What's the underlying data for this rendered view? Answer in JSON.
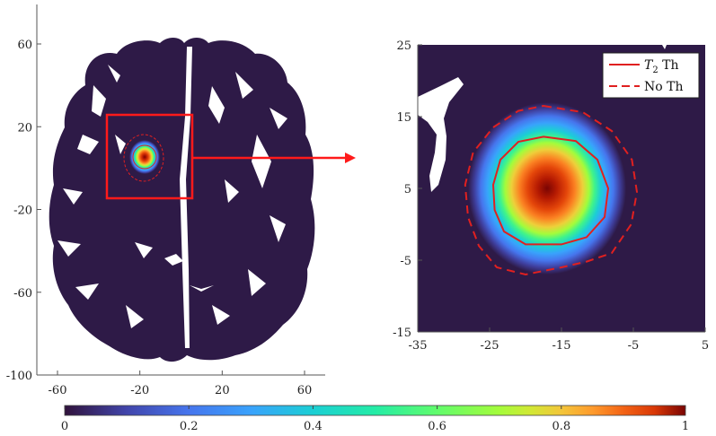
{
  "chart_data": [
    {
      "type": "heatmap",
      "panel": "full brain slice",
      "xlim": [
        -70,
        70
      ],
      "ylim": [
        -100,
        80
      ],
      "xticks": [
        -60,
        -20,
        20,
        60
      ],
      "yticks": [
        60,
        20,
        -20,
        -60,
        -100
      ],
      "tumor_center": [
        -17,
        5
      ],
      "tumor_peak_value": 1,
      "zoom_box": {
        "x_range": [
          -35,
          5
        ],
        "y_range": [
          -15,
          25
        ]
      }
    },
    {
      "type": "heatmap",
      "panel": "zoomed region",
      "xlim": [
        -35,
        5
      ],
      "ylim": [
        -15,
        25
      ],
      "xticks": [
        -35,
        -25,
        -15,
        -5,
        5
      ],
      "yticks": [
        25,
        15,
        5,
        -5,
        -15
      ],
      "tumor_center": [
        -17,
        5
      ],
      "series": [
        {
          "name": "T2 Th",
          "style": "solid",
          "contour": [
            [
              -17.5,
              12.2
            ],
            [
              -13,
              11.6
            ],
            [
              -10,
              9
            ],
            [
              -8.5,
              5
            ],
            [
              -9,
              1
            ],
            [
              -11.5,
              -1.8
            ],
            [
              -15,
              -2.8
            ],
            [
              -20,
              -2.8
            ],
            [
              -23,
              -1
            ],
            [
              -24.3,
              2
            ],
            [
              -24.5,
              5.5
            ],
            [
              -23.5,
              9
            ],
            [
              -21,
              11.5
            ]
          ]
        },
        {
          "name": "No Th",
          "style": "dashed",
          "contour": [
            [
              -17.5,
              16.5
            ],
            [
              -12,
              15.6
            ],
            [
              -8,
              13
            ],
            [
              -5.2,
              9
            ],
            [
              -4.5,
              4.5
            ],
            [
              -5.3,
              0
            ],
            [
              -8,
              -4
            ],
            [
              -11.5,
              -5.2
            ],
            [
              -15,
              -6
            ],
            [
              -20,
              -7
            ],
            [
              -24,
              -6
            ],
            [
              -26.5,
              -3
            ],
            [
              -28,
              1
            ],
            [
              -28.4,
              5.5
            ],
            [
              -27.3,
              10
            ],
            [
              -24.5,
              13.5
            ],
            [
              -21,
              15.8
            ]
          ]
        }
      ]
    }
  ],
  "legend": [
    {
      "label_main": "T",
      "label_sub": "2",
      "label_rest": " Th",
      "style": "solid"
    },
    {
      "label_main": "No Th",
      "style": "dashed"
    }
  ],
  "colorbar": {
    "range": [
      0,
      1
    ],
    "ticks": [
      "0",
      "0.2",
      "0.4",
      "0.6",
      "0.8",
      "1"
    ],
    "tick_values": [
      0,
      0.2,
      0.4,
      0.6,
      0.8,
      1
    ]
  },
  "colors": {
    "background_tissue": "#2e1a47",
    "contour": "#e02020",
    "zoom_box": "#ff1a1a"
  }
}
